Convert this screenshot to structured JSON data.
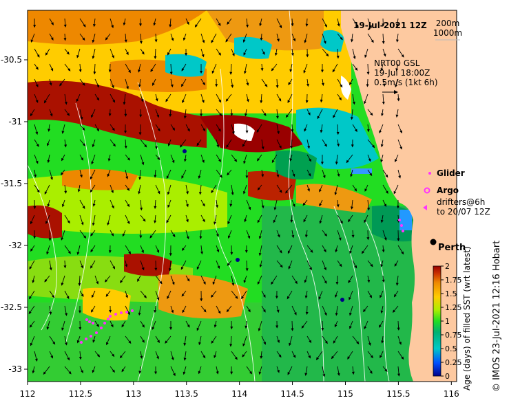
{
  "title": "19-Jul-2021 12Z",
  "depth_contours": [
    "200m",
    "1000m"
  ],
  "current_source": {
    "line1": "NRT00 GSL",
    "line2": "19-Jul 18:00Z",
    "line3": "0.5m/s (1kt 6h)"
  },
  "legend": {
    "glider": "Glider",
    "argo": "Argo",
    "drifters_line1": "drifters@6h",
    "drifters_line2": "to 20/07 12Z",
    "glider_color": "#ff33ff",
    "argo_color": "#ff33ff",
    "drifter_color": "#ff33ff"
  },
  "city": "Perth",
  "colorbar": {
    "title": "Age (days) of filled SST (wrt latest)",
    "ticks": [
      "0",
      "0.25",
      "0.5",
      "0.75",
      "1",
      "1.25",
      "1.5",
      "1.75",
      "2"
    ],
    "colors": [
      "#00008b",
      "#0050ff",
      "#00c8c8",
      "#00b070",
      "#22dd22",
      "#aaee00",
      "#ffcc00",
      "#ee8800",
      "#cc3300",
      "#990000"
    ]
  },
  "credit": "© IMOS 23-Jul-2021 12:16 Hobart",
  "axes": {
    "x_ticks": [
      "112",
      "112.5",
      "113",
      "113.5",
      "114",
      "114.5",
      "115",
      "115.5",
      "116"
    ],
    "y_ticks": [
      "-30.5",
      "-31",
      "-31.5",
      "-32",
      "-32.5",
      "-33"
    ],
    "xlim": [
      112,
      116.05
    ],
    "ylim": [
      -33.1,
      -30.1
    ]
  },
  "colors": {
    "land": "#fdc9a0",
    "frame": "#000000"
  }
}
